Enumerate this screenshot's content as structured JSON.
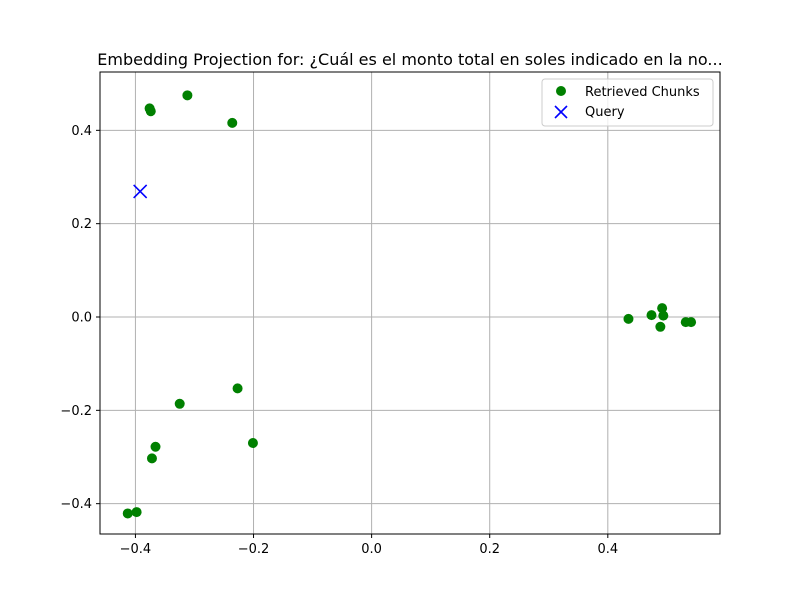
{
  "chart_data": {
    "type": "scatter",
    "title": "Embedding Projection for: ¿Cuál es el monto total en soles indicado en la no...",
    "xlabel": "",
    "ylabel": "",
    "xlim": [
      -0.46,
      0.59
    ],
    "ylim": [
      -0.465,
      0.525
    ],
    "xticks": [
      -0.4,
      -0.2,
      0.0,
      0.2,
      0.4
    ],
    "xtick_labels": [
      "−0.4",
      "−0.2",
      "0.0",
      "0.2",
      "0.4"
    ],
    "yticks": [
      -0.4,
      -0.2,
      0.0,
      0.2,
      0.4
    ],
    "ytick_labels": [
      "−0.4",
      "−0.2",
      "0.0",
      "0.2",
      "0.4"
    ],
    "grid": true,
    "legend_position": "top-right",
    "series": [
      {
        "name": "Retrieved Chunks",
        "marker": "circle",
        "color": "#008000",
        "points": [
          {
            "x": -0.376,
            "y": 0.447
          },
          {
            "x": -0.374,
            "y": 0.441
          },
          {
            "x": -0.312,
            "y": 0.475
          },
          {
            "x": -0.236,
            "y": 0.416
          },
          {
            "x": 0.435,
            "y": -0.004
          },
          {
            "x": 0.474,
            "y": 0.004
          },
          {
            "x": 0.492,
            "y": 0.019
          },
          {
            "x": 0.494,
            "y": 0.003
          },
          {
            "x": 0.489,
            "y": -0.021
          },
          {
            "x": 0.532,
            "y": -0.011
          },
          {
            "x": 0.541,
            "y": -0.011
          },
          {
            "x": -0.227,
            "y": -0.153
          },
          {
            "x": -0.325,
            "y": -0.186
          },
          {
            "x": -0.366,
            "y": -0.278
          },
          {
            "x": -0.372,
            "y": -0.303
          },
          {
            "x": -0.201,
            "y": -0.27
          },
          {
            "x": -0.413,
            "y": -0.421
          },
          {
            "x": -0.398,
            "y": -0.418
          }
        ]
      },
      {
        "name": "Query",
        "marker": "x",
        "color": "#0000ff",
        "points": [
          {
            "x": -0.392,
            "y": 0.269
          }
        ]
      }
    ]
  }
}
